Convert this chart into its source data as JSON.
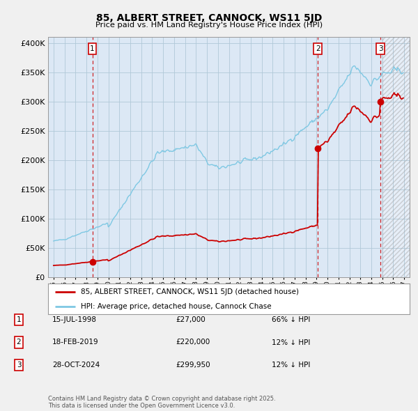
{
  "title": "85, ALBERT STREET, CANNOCK, WS11 5JD",
  "subtitle": "Price paid vs. HM Land Registry's House Price Index (HPI)",
  "legend_line1": "85, ALBERT STREET, CANNOCK, WS11 5JD (detached house)",
  "legend_line2": "HPI: Average price, detached house, Cannock Chase",
  "footnote": "Contains HM Land Registry data © Crown copyright and database right 2025.\nThis data is licensed under the Open Government Licence v3.0.",
  "transactions": [
    {
      "label": "1",
      "date": "15-JUL-1998",
      "price": 27000,
      "hpi_rel": "66% ↓ HPI",
      "x": 1998.54
    },
    {
      "label": "2",
      "date": "18-FEB-2019",
      "price": 220000,
      "hpi_rel": "12% ↓ HPI",
      "x": 2019.13
    },
    {
      "label": "3",
      "date": "28-OCT-2024",
      "price": 299950,
      "hpi_rel": "12% ↓ HPI",
      "x": 2024.83
    }
  ],
  "hpi_color": "#7ec8e3",
  "price_color": "#cc0000",
  "dashed_color": "#cc0000",
  "bg_color": "#f0f0f0",
  "plot_bg": "#dce8f5",
  "grid_color": "#b0c8d8",
  "ylim": [
    0,
    410000
  ],
  "xlim_start": 1994.5,
  "xlim_end": 2027.5
}
